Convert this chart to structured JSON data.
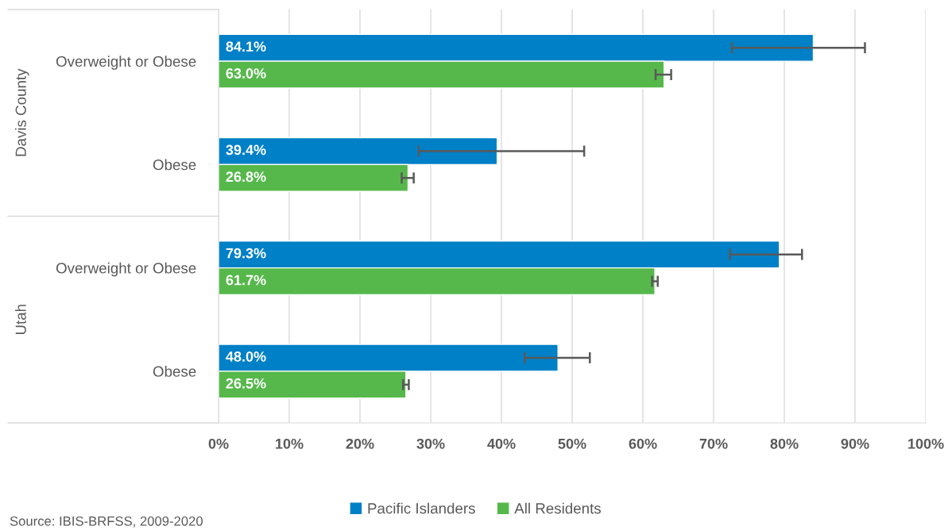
{
  "chart_data": {
    "type": "bar",
    "orientation": "horizontal",
    "categories": [
      "Overweight or Obese",
      "Obese",
      "Overweight or Obese",
      "Obese"
    ],
    "series": [
      {
        "name": "Pacific Islanders",
        "color": "#0080c6",
        "values": [
          84.1,
          39.4,
          79.3,
          48.0
        ],
        "value_labels": [
          "84.1%",
          "39.4%",
          "79.3%",
          "48.0%"
        ],
        "errors": [
          [
            72.6,
            91.4
          ],
          [
            28.3,
            51.7
          ],
          [
            72.3,
            82.5
          ],
          [
            43.3,
            52.5
          ]
        ]
      },
      {
        "name": "All Residents",
        "color": "#56b84b",
        "values": [
          63.0,
          26.8,
          61.7,
          26.5
        ],
        "value_labels": [
          "63.0%",
          "26.8%",
          "61.7%",
          "26.5%"
        ],
        "errors": [
          [
            61.8,
            64.0
          ],
          [
            25.9,
            27.6
          ],
          [
            61.3,
            62.1
          ],
          [
            26.1,
            26.9
          ]
        ]
      }
    ],
    "xlim": [
      0,
      100
    ],
    "xticks": [
      {
        "value": 0,
        "label": "0%"
      },
      {
        "value": 10,
        "label": "10%"
      },
      {
        "value": 20,
        "label": "20%"
      },
      {
        "value": 30,
        "label": "30%"
      },
      {
        "value": 40,
        "label": "40%"
      },
      {
        "value": 50,
        "label": "50%"
      },
      {
        "value": 60,
        "label": "60%"
      },
      {
        "value": 70,
        "label": "70%"
      },
      {
        "value": 80,
        "label": "80%"
      },
      {
        "value": 90,
        "label": "90%"
      },
      {
        "value": 100,
        "label": "100%"
      }
    ],
    "grid": "x",
    "legend": "bottom",
    "annotations": [
      "Davis County",
      "Utah",
      "Source: IBIS-BRFSS, 2009-2020"
    ]
  }
}
